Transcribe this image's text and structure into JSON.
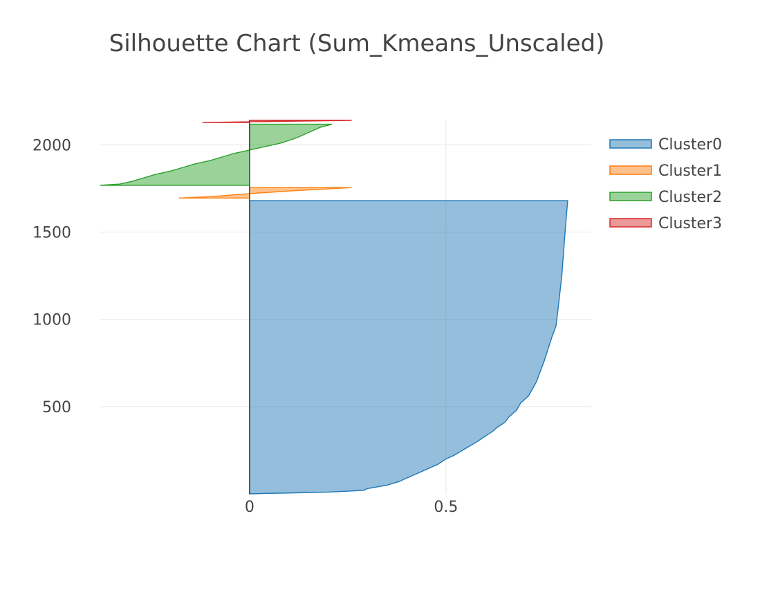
{
  "chart_data": {
    "type": "area",
    "title": "Silhouette Chart (Sum_Kmeans_Unscaled)",
    "xlabel": "",
    "ylabel": "",
    "xlim": [
      -0.38,
      0.87
    ],
    "ylim": [
      0,
      2140
    ],
    "x_ticks": [
      0,
      0.5
    ],
    "y_ticks": [
      500,
      1000,
      1500,
      2000
    ],
    "grid": true,
    "legend_position": "right",
    "series": [
      {
        "name": "Cluster0",
        "color": "#1f77b4",
        "points": [
          [
            0.0,
            0
          ],
          [
            0.05,
            3
          ],
          [
            0.1,
            5
          ],
          [
            0.2,
            10
          ],
          [
            0.29,
            20
          ],
          [
            0.3,
            30
          ],
          [
            0.35,
            50
          ],
          [
            0.38,
            70
          ],
          [
            0.4,
            90
          ],
          [
            0.42,
            110
          ],
          [
            0.45,
            140
          ],
          [
            0.48,
            170
          ],
          [
            0.5,
            200
          ],
          [
            0.52,
            220
          ],
          [
            0.55,
            260
          ],
          [
            0.58,
            300
          ],
          [
            0.6,
            330
          ],
          [
            0.62,
            360
          ],
          [
            0.63,
            380
          ],
          [
            0.65,
            410
          ],
          [
            0.66,
            440
          ],
          [
            0.68,
            480
          ],
          [
            0.69,
            520
          ],
          [
            0.71,
            560
          ],
          [
            0.72,
            600
          ],
          [
            0.73,
            640
          ],
          [
            0.74,
            700
          ],
          [
            0.75,
            760
          ],
          [
            0.76,
            830
          ],
          [
            0.77,
            900
          ],
          [
            0.78,
            960
          ],
          [
            0.785,
            1050
          ],
          [
            0.79,
            1150
          ],
          [
            0.795,
            1250
          ],
          [
            0.8,
            1400
          ],
          [
            0.805,
            1550
          ],
          [
            0.81,
            1680
          ]
        ]
      },
      {
        "name": "Cluster1",
        "color": "#ff7f0e",
        "points": [
          [
            -0.18,
            1695
          ],
          [
            -0.1,
            1703
          ],
          [
            0.0,
            1720
          ],
          [
            0.1,
            1735
          ],
          [
            0.26,
            1755
          ]
        ]
      },
      {
        "name": "Cluster2",
        "color": "#2ca02c",
        "points": [
          [
            -0.38,
            1768
          ],
          [
            -0.33,
            1775
          ],
          [
            -0.3,
            1790
          ],
          [
            -0.27,
            1810
          ],
          [
            -0.24,
            1830
          ],
          [
            -0.2,
            1850
          ],
          [
            -0.17,
            1870
          ],
          [
            -0.14,
            1890
          ],
          [
            -0.1,
            1910
          ],
          [
            -0.07,
            1930
          ],
          [
            -0.04,
            1950
          ],
          [
            0.0,
            1970
          ],
          [
            0.04,
            1990
          ],
          [
            0.08,
            2010
          ],
          [
            0.12,
            2040
          ],
          [
            0.15,
            2070
          ],
          [
            0.18,
            2100
          ],
          [
            0.21,
            2118
          ]
        ]
      },
      {
        "name": "Cluster3",
        "color": "#d62728",
        "points": [
          [
            -0.12,
            2128
          ],
          [
            0.0,
            2132
          ],
          [
            0.1,
            2135
          ],
          [
            0.26,
            2140
          ]
        ]
      }
    ]
  }
}
